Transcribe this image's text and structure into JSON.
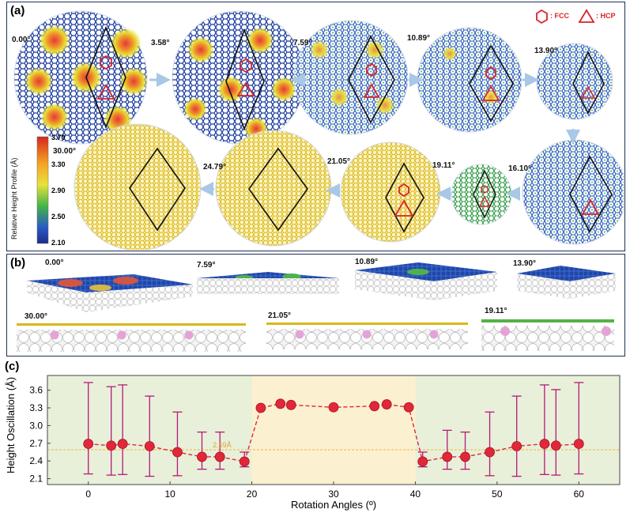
{
  "panels": {
    "a": {
      "label": "(a)",
      "legend": {
        "fcc": ": FCC",
        "hcp": ": HCP"
      },
      "colorbar": {
        "label": "Relative Height Profile (Å)",
        "ticks": [
          "3.70",
          "3.30",
          "2.90",
          "2.50",
          "2.10"
        ]
      },
      "angles": [
        "0.00°",
        "3.58°",
        "7.59°",
        "10.89°",
        "13.90°",
        "16.10°",
        "19.11°",
        "21.05°",
        "24.79°",
        "30.00°"
      ]
    },
    "b": {
      "label": "(b)",
      "angles": [
        "0.00°",
        "7.59°",
        "10.89°",
        "13.90°",
        "30.00°",
        "21.05°",
        "19.11°"
      ]
    },
    "c": {
      "label": "(c)",
      "reference_label": "2.59Å"
    }
  },
  "chart_data": {
    "type": "scatter",
    "xlabel": "Rotation Angles (º)",
    "ylabel": "Height Oscillation (Å)",
    "xlim": [
      -5,
      65
    ],
    "ylim": [
      2.0,
      3.85
    ],
    "xticks": [
      0,
      10,
      20,
      30,
      40,
      50,
      60
    ],
    "yticks": [
      2.1,
      2.4,
      2.7,
      3.0,
      3.3,
      3.6
    ],
    "reference_line": 2.59,
    "shaded_regions": [
      {
        "x": [
          -5,
          20
        ],
        "color": "#e8f0d9"
      },
      {
        "x": [
          20,
          40
        ],
        "color": "#fbf0cf"
      },
      {
        "x": [
          40,
          65
        ],
        "color": "#e8f0d9"
      }
    ],
    "series": [
      {
        "x": [
          0,
          2.8,
          4.2,
          7.5,
          10.9,
          13.9,
          16.1,
          19.1,
          21.1,
          23.5,
          24.8,
          30,
          35,
          36.5,
          39.2,
          40.9,
          43.9,
          46.1,
          49.1,
          52.4,
          55.8,
          57.2,
          60
        ],
        "y": [
          2.69,
          2.66,
          2.69,
          2.65,
          2.55,
          2.47,
          2.47,
          2.39,
          3.3,
          3.37,
          3.35,
          3.31,
          3.33,
          3.36,
          3.31,
          2.39,
          2.47,
          2.47,
          2.55,
          2.65,
          2.69,
          2.66,
          2.69
        ],
        "err_low": [
          2.18,
          2.16,
          2.17,
          2.14,
          2.15,
          2.26,
          2.26,
          2.3,
          3.3,
          3.37,
          3.35,
          3.31,
          3.33,
          3.36,
          3.31,
          2.3,
          2.26,
          2.26,
          2.15,
          2.14,
          2.17,
          2.16,
          2.18
        ],
        "err_high": [
          3.73,
          3.66,
          3.69,
          3.5,
          3.23,
          2.89,
          2.89,
          2.55,
          3.3,
          3.37,
          3.35,
          3.31,
          3.33,
          3.36,
          3.31,
          2.55,
          2.92,
          2.89,
          3.23,
          3.5,
          3.69,
          3.61,
          3.73
        ],
        "color": "#e0283a",
        "errorbar_color": "#b5197a"
      }
    ]
  }
}
